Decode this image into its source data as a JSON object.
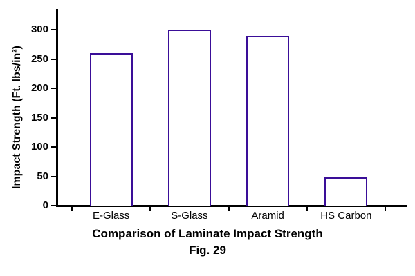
{
  "chart_data": {
    "type": "bar",
    "title": "Comparison of Laminate Impact Strength",
    "caption": "Fig. 29",
    "ylabel": "Impact Strength (Ft. lbs/in²)",
    "xlabel": "",
    "categories": [
      "E-Glass",
      "S-Glass",
      "Aramid",
      "HS Carbon"
    ],
    "values": [
      260,
      300,
      290,
      48
    ],
    "yticks": [
      0,
      50,
      100,
      150,
      200,
      250,
      300
    ],
    "ylim": [
      0,
      300
    ],
    "grid": false,
    "legend": null,
    "bar_fill_color": "#FFFFFF",
    "bar_border_color": "#3A0E98",
    "axis_color": "#000000",
    "text_color": "#000000"
  }
}
